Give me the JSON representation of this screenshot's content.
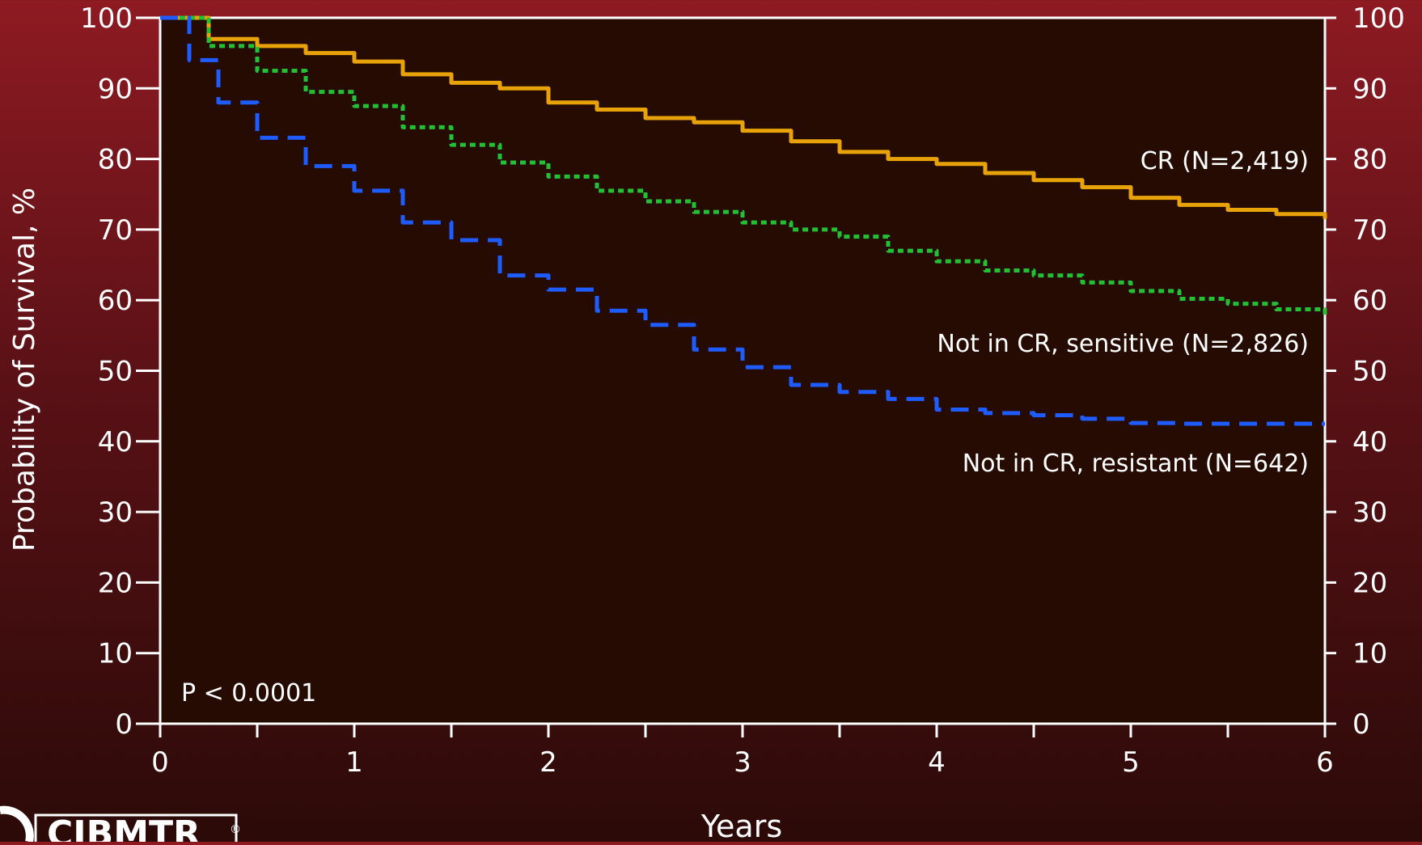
{
  "chart_data": {
    "type": "line",
    "ylabel": "Probability of Survival, %",
    "xlabel": "Years",
    "xlim": [
      0,
      6
    ],
    "ylim": [
      0,
      100
    ],
    "x_ticks": [
      "0",
      "1",
      "2",
      "3",
      "4",
      "5",
      "6"
    ],
    "y_ticks": [
      "0",
      "10",
      "20",
      "30",
      "40",
      "50",
      "60",
      "70",
      "80",
      "90",
      "100"
    ],
    "annotation": "P < 0.0001",
    "series": [
      {
        "name": "CR (N=2,419)",
        "color": "#e8a30a",
        "style": "solid",
        "x": [
          0,
          0.25,
          0.5,
          0.75,
          1,
          1.25,
          1.5,
          1.75,
          2,
          2.25,
          2.5,
          2.75,
          3,
          3.25,
          3.5,
          3.75,
          4,
          4.25,
          4.5,
          4.75,
          5,
          5.25,
          5.5,
          5.75,
          6
        ],
        "y": [
          100,
          97,
          96,
          95,
          93.8,
          92,
          90.8,
          90,
          88,
          87,
          85.8,
          85.2,
          84,
          82.5,
          81,
          80,
          79.3,
          78,
          77,
          76,
          74.5,
          73.5,
          72.8,
          72.2,
          71.5
        ]
      },
      {
        "name": "Not in CR, sensitive (N=2,826)",
        "color": "#22c032",
        "style": "dotted",
        "x": [
          0,
          0.25,
          0.5,
          0.75,
          1,
          1.25,
          1.5,
          1.75,
          2,
          2.25,
          2.5,
          2.75,
          3,
          3.25,
          3.5,
          3.75,
          4,
          4.25,
          4.5,
          4.75,
          5,
          5.25,
          5.5,
          5.75,
          6
        ],
        "y": [
          100,
          96,
          92.5,
          89.5,
          87.5,
          84.5,
          82,
          79.5,
          77.5,
          75.5,
          74,
          72.5,
          71,
          70,
          69,
          67,
          65.5,
          64.2,
          63.5,
          62.5,
          61.3,
          60.2,
          59.5,
          58.7,
          57.5
        ]
      },
      {
        "name": "Not in CR, resistant (N=642)",
        "color": "#1f5cff",
        "style": "dashed",
        "x": [
          0,
          0.15,
          0.3,
          0.5,
          0.75,
          1,
          1.25,
          1.5,
          1.75,
          2,
          2.25,
          2.5,
          2.75,
          3,
          3.25,
          3.5,
          3.75,
          4,
          4.25,
          4.5,
          4.75,
          5,
          5.25,
          5.5,
          5.75,
          6
        ],
        "y": [
          100,
          94,
          88,
          83,
          79,
          75.5,
          71,
          68.5,
          63.5,
          61.5,
          58.5,
          56.5,
          53,
          50.5,
          48,
          47,
          46,
          44.5,
          44,
          43.7,
          43.2,
          42.6,
          42.5,
          42.5,
          42.5,
          42.5
        ]
      }
    ]
  },
  "logo": {
    "text": "CIBMTR",
    "mark": "®"
  }
}
